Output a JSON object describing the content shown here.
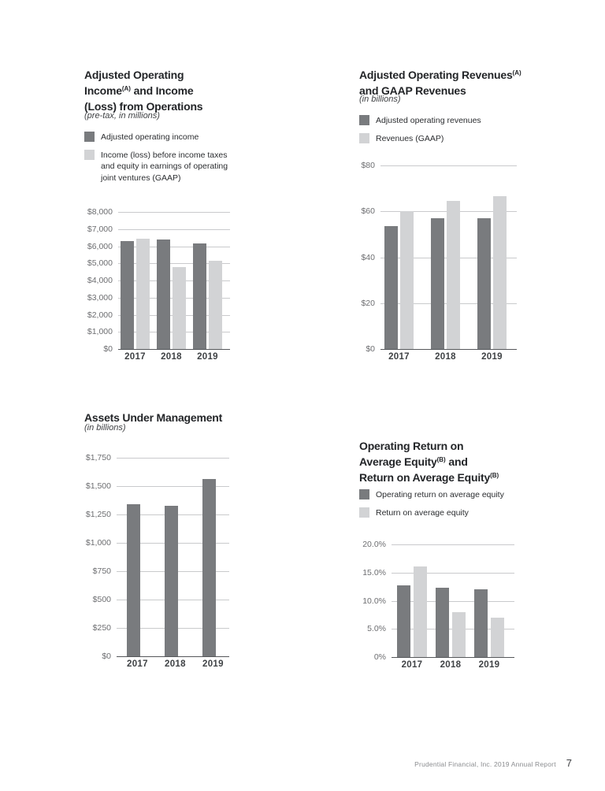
{
  "page": {
    "footer": {
      "text": "Prudential Financial, Inc. 2019 Annual Report",
      "page_number": "7"
    }
  },
  "colors": {
    "bar_dark": "#797b7e",
    "bar_light": "#d2d3d5",
    "gridline": "#c9cacc",
    "axis": "#55575a",
    "title_text": "#232528",
    "tick_label": "#6d6e71",
    "year_label": "#3f4245",
    "footer_text": "#8b8d90"
  },
  "chart_data": [
    {
      "type": "bar",
      "title": "Adjusted Operating\nIncome^(A) and Income\n(Loss) from Operations",
      "subtitle": "(pre-tax, in millions)",
      "legend": [
        {
          "label": "Adjusted operating income",
          "swatch": "dark"
        },
        {
          "label": "Income (loss) before income taxes\nand equity in earnings of operating\njoint ventures (GAAP)",
          "swatch": "light"
        }
      ],
      "categories": [
        "2017",
        "2018",
        "2019"
      ],
      "series": [
        {
          "name": "Adjusted operating income",
          "values": [
            6300,
            6400,
            6150
          ]
        },
        {
          "name": "Income (loss) before income taxes and equity in earnings of operating joint ventures (GAAP)",
          "values": [
            6450,
            4800,
            5150
          ]
        }
      ],
      "ylim": [
        0,
        8000
      ],
      "ytick_step": 1000,
      "ytick_labels": [
        "$8,000",
        "$7,000",
        "$6,000",
        "$5,000",
        "$4,000",
        "$3,000",
        "$2,000",
        "$1,000",
        "$0"
      ],
      "grid": true,
      "legend_position": "above"
    },
    {
      "type": "bar",
      "title": "Adjusted Operating Revenues^(A)\nand GAAP Revenues",
      "subtitle": "(in billions)",
      "legend": [
        {
          "label": "Adjusted operating revenues",
          "swatch": "dark"
        },
        {
          "label": "Revenues (GAAP)",
          "swatch": "light"
        }
      ],
      "categories": [
        "2017",
        "2018",
        "2019"
      ],
      "series": [
        {
          "name": "Adjusted operating revenues",
          "values": [
            53.5,
            57,
            57
          ]
        },
        {
          "name": "Revenues (GAAP)",
          "values": [
            60,
            64.5,
            66.5
          ]
        }
      ],
      "ylim": [
        0,
        80
      ],
      "ytick_step": 20,
      "ytick_labels": [
        "$80",
        "$60",
        "$40",
        "$20",
        "$0"
      ],
      "grid": true,
      "legend_position": "above"
    },
    {
      "type": "bar",
      "title": "Assets Under Management",
      "subtitle": "(in billions)",
      "legend": [],
      "categories": [
        "2017",
        "2018",
        "2019"
      ],
      "series": [
        {
          "name": "Assets under management",
          "values": [
            1340,
            1325,
            1560
          ]
        }
      ],
      "ylim": [
        0,
        1750
      ],
      "ytick_step": 250,
      "ytick_labels": [
        "$1,750",
        "$1,500",
        "$1,250",
        "$1,000",
        "$750",
        "$500",
        "$250",
        "$0"
      ],
      "grid": true,
      "legend_position": "none"
    },
    {
      "type": "bar",
      "title": "Operating Return on\nAverage Equity^(B) and\nReturn on Average Equity^(B)",
      "subtitle": "",
      "legend": [
        {
          "label": "Operating return on average equity",
          "swatch": "dark"
        },
        {
          "label": "Return on average equity",
          "swatch": "light"
        }
      ],
      "categories": [
        "2017",
        "2018",
        "2019"
      ],
      "series": [
        {
          "name": "Operating return on average equity",
          "values": [
            12.7,
            12.3,
            12.0
          ]
        },
        {
          "name": "Return on average equity",
          "values": [
            16.1,
            8.0,
            7.0
          ]
        }
      ],
      "ylim": [
        0,
        20
      ],
      "ytick_step": 5,
      "ytick_labels": [
        "20.0%",
        "15.0%",
        "10.0%",
        "5.0%",
        "0%"
      ],
      "grid": true,
      "legend_position": "above"
    }
  ]
}
